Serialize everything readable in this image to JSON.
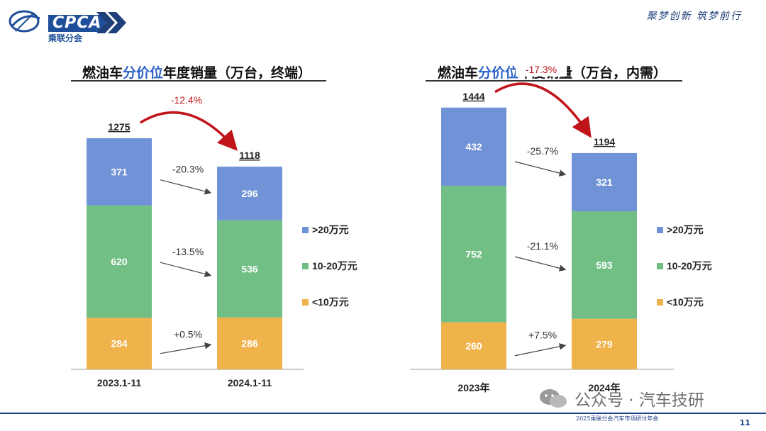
{
  "header": {
    "logo_text": "CPCA",
    "logo_sub": "乘联分会",
    "slogan": "聚梦创新 筑梦前行"
  },
  "colors": {
    "gt20": "#6f93d6",
    "mid": "#72bf85",
    "lt10": "#f0b24a",
    "total_change": "#c0141b"
  },
  "chart_data": [
    {
      "type": "bar",
      "stacked": true,
      "title_pre": "燃油车",
      "title_hl": "分价位",
      "title_post": "年度销量（万台，终端）",
      "categories": [
        "2023.1-11",
        "2024.1-11"
      ],
      "totals": [
        1275,
        1118
      ],
      "total_change": "-12.4%",
      "series": [
        {
          "name": "<10万元",
          "values": [
            284,
            286
          ],
          "change": "+0.5%"
        },
        {
          "name": "10-20万元",
          "values": [
            620,
            536
          ],
          "change": "-13.5%"
        },
        {
          "name": ">20万元",
          "values": [
            371,
            296
          ],
          "change": "-20.3%"
        }
      ],
      "legend_position": "right"
    },
    {
      "type": "bar",
      "stacked": true,
      "title_pre": "燃油车",
      "title_hl": "分价位",
      "title_post": "年度销量（万台，内需）",
      "categories": [
        "2023年",
        "2024年"
      ],
      "totals": [
        1444,
        1194
      ],
      "total_change": "-17.3%",
      "series": [
        {
          "name": "<10万元",
          "values": [
            260,
            279
          ],
          "change": "+7.5%"
        },
        {
          "name": "10-20万元",
          "values": [
            752,
            593
          ],
          "change": "-21.1%"
        },
        {
          "name": ">20万元",
          "values": [
            432,
            321
          ],
          "change": "-25.7%"
        }
      ],
      "legend_position": "right"
    }
  ],
  "footer": {
    "event_text": "2025乘联分会汽车市场研讨年会",
    "page_number": "11",
    "watermark_text": "公众号 · 汽车技研"
  }
}
